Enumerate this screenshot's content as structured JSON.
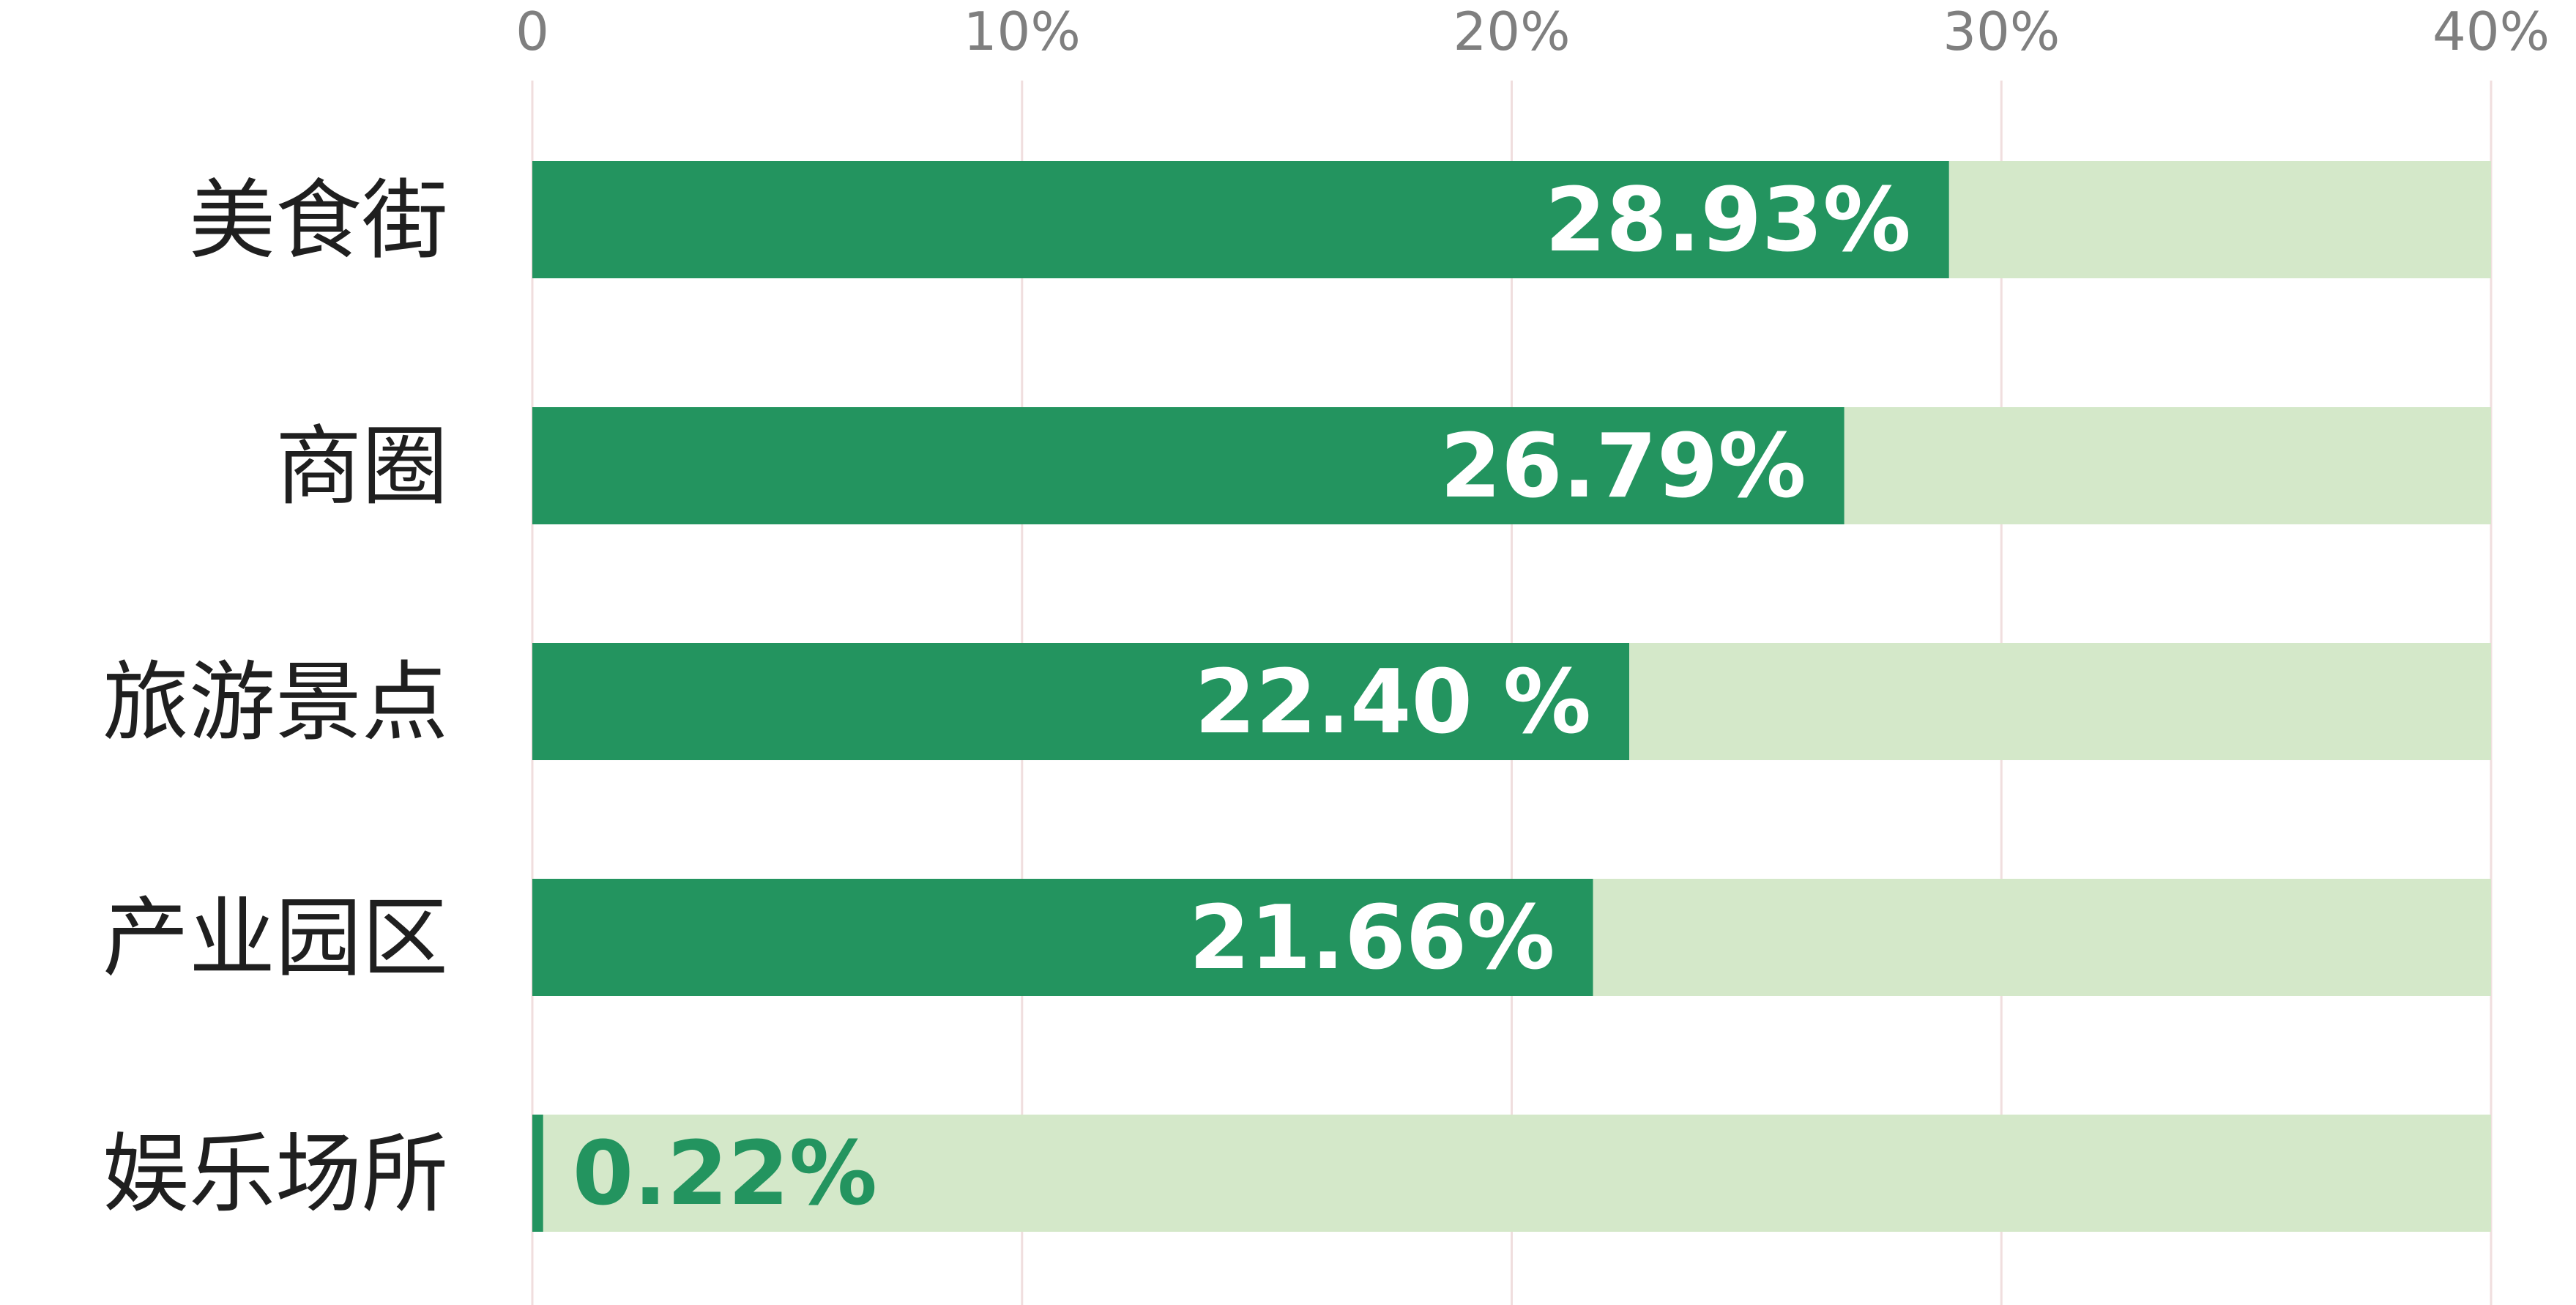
{
  "chart_data": {
    "type": "bar",
    "orientation": "horizontal",
    "title": "",
    "xlabel": "",
    "ylabel": "",
    "xlim": [
      0,
      40
    ],
    "x_ticks": [
      {
        "value": 0,
        "label": "0"
      },
      {
        "value": 10,
        "label": "10%"
      },
      {
        "value": 20,
        "label": "20%"
      },
      {
        "value": 30,
        "label": "30%"
      },
      {
        "value": 40,
        "label": "40%"
      }
    ],
    "grid": true,
    "tick_position": "top",
    "background_track": true,
    "categories": [
      "美食街",
      "商圈",
      "旅游景点",
      "产业园区",
      "娱乐场所"
    ],
    "values": [
      28.93,
      26.79,
      22.4,
      21.66,
      0.22
    ],
    "data_labels": [
      "28.93%",
      "26.79%",
      "22.40 %",
      "21.66%",
      "0.22%"
    ],
    "colors": {
      "bar": "#23945f",
      "track": "#d4e8c9",
      "grid": "#f0dede",
      "label_inside": "#ffffff",
      "label_outside": "#23945f"
    }
  }
}
